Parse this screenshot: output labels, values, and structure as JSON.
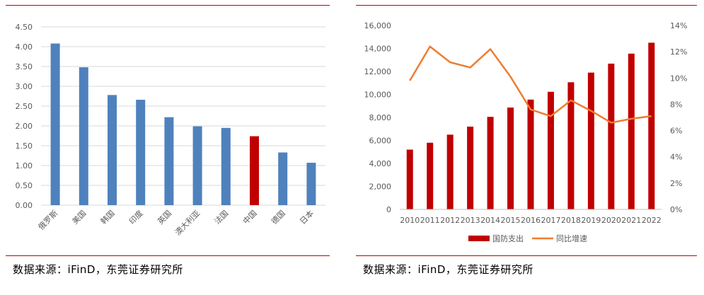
{
  "left_source": "数据来源：iFinD，东莞证券研究所",
  "right_source": "数据来源：iFinD，东莞证券研究所",
  "chart_data": [
    {
      "type": "bar",
      "categories": [
        "俄罗斯",
        "美国",
        "韩国",
        "印度",
        "英国",
        "澳大利亚",
        "法国",
        "中国",
        "德国",
        "日本"
      ],
      "values": [
        4.08,
        3.48,
        2.78,
        2.66,
        2.22,
        1.99,
        1.95,
        1.74,
        1.33,
        1.07
      ],
      "highlight_category": "中国",
      "colors": {
        "default": "#4f81bd",
        "highlight": "#c00000"
      },
      "ylim": [
        0,
        4.5
      ],
      "yticks": [
        "0.00",
        "0.50",
        "1.00",
        "1.50",
        "2.00",
        "2.50",
        "3.00",
        "3.50",
        "4.00",
        "4.50"
      ],
      "grid": true
    },
    {
      "type": "bar",
      "categories": [
        "2010",
        "2011",
        "2012",
        "2013",
        "2014",
        "2015",
        "2016",
        "2017",
        "2018",
        "2019",
        "2020",
        "2021",
        "2022"
      ],
      "series": [
        {
          "name": "国防支出",
          "type": "bar",
          "axis": "left",
          "color": "#c00000",
          "values": [
            5200,
            5800,
            6500,
            7200,
            8050,
            8860,
            9550,
            10230,
            11060,
            11900,
            12680,
            13550,
            14500
          ]
        },
        {
          "name": "同比增速",
          "type": "line",
          "axis": "right",
          "color": "#ed7d31",
          "values": [
            9.8,
            12.4,
            11.2,
            10.8,
            12.2,
            10.1,
            7.6,
            7.1,
            8.3,
            7.5,
            6.6,
            6.9,
            7.1
          ]
        }
      ],
      "ylim_left": [
        0,
        16000
      ],
      "ylim_right": [
        0,
        14
      ],
      "yticks_left": [
        "0",
        "2,000",
        "4,000",
        "6,000",
        "8,000",
        "10,000",
        "12,000",
        "14,000",
        "16,000"
      ],
      "yticks_right": [
        "0%",
        "2%",
        "4%",
        "6%",
        "8%",
        "10%",
        "12%",
        "14%"
      ],
      "legend_position": "bottom",
      "grid": false
    }
  ]
}
